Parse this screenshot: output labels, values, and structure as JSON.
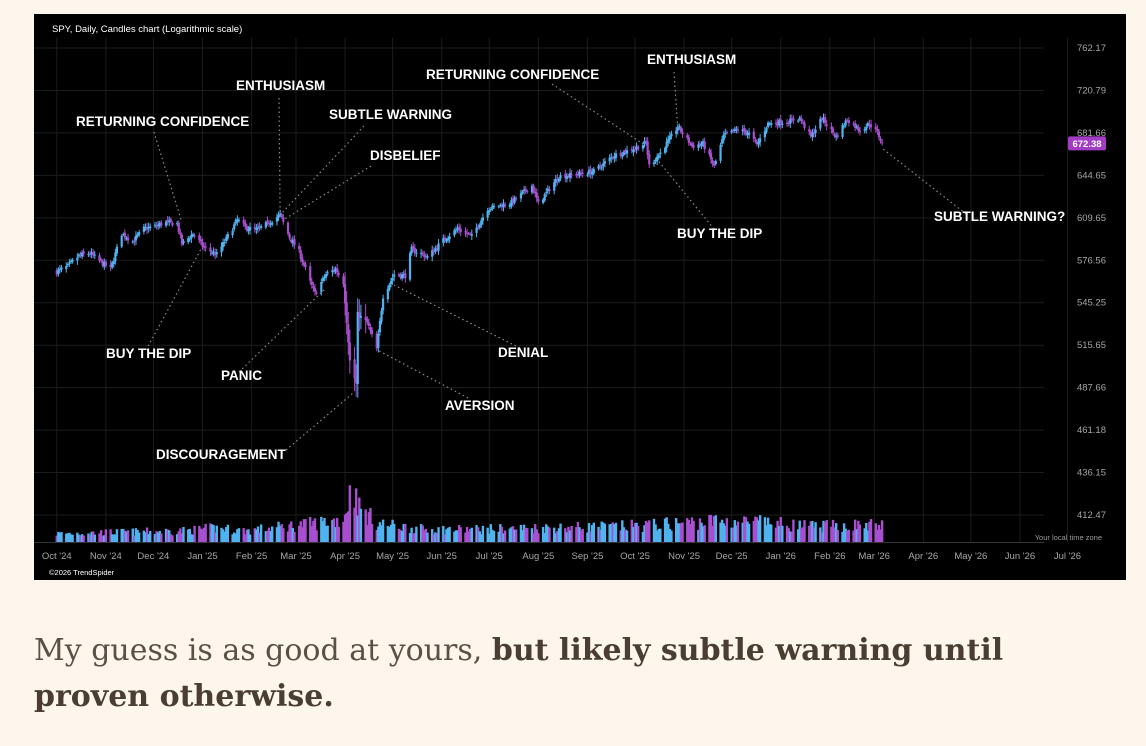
{
  "chart_data": {
    "type": "candlestick",
    "title": "SPY, Daily, Candles chart (Logarithmic scale)",
    "y_scale": "log",
    "ylim": [
      400,
      775
    ],
    "y_ticks": [
      "762.17",
      "720.79",
      "681.66",
      "644.65",
      "609.65",
      "576.56",
      "545.25",
      "515.65",
      "487.66",
      "461.18",
      "436.15",
      "412.47"
    ],
    "x_ticks": [
      "Oct '24",
      "Nov '24",
      "Dec '24",
      "Jan '25",
      "Feb '25",
      "Mar '25",
      "Apr '25",
      "May '25",
      "Jun '25",
      "Jul '25",
      "Aug '25",
      "Sep '25",
      "Oct '25",
      "Nov '25",
      "Dec '25",
      "Jan '26",
      "Feb '26",
      "Mar '26",
      "Apr '26",
      "May '26",
      "Jun '26",
      "Jul '26"
    ],
    "last_price": "672.38",
    "x_note": "Your local time zone",
    "footer": "©2026 TrendSpider",
    "colors": {
      "up": "#4fb3f0",
      "down": "#a84fd0",
      "last_price_bg": "#a23cc4",
      "annotation": "#ffffff",
      "grid": "#1c1c1c",
      "leader": "#8a8a8a"
    },
    "price_path": [
      {
        "date": "2024-10-01",
        "close": 568
      },
      {
        "date": "2024-10-08",
        "close": 572
      },
      {
        "date": "2024-10-15",
        "close": 580
      },
      {
        "date": "2024-10-22",
        "close": 582
      },
      {
        "date": "2024-10-29",
        "close": 575
      },
      {
        "date": "2024-11-04",
        "close": 570
      },
      {
        "date": "2024-11-11",
        "close": 597
      },
      {
        "date": "2024-11-18",
        "close": 591
      },
      {
        "date": "2024-11-25",
        "close": 601
      },
      {
        "date": "2024-12-02",
        "close": 603
      },
      {
        "date": "2024-12-09",
        "close": 606
      },
      {
        "date": "2024-12-16",
        "close": 605
      },
      {
        "date": "2024-12-19",
        "close": 589
      },
      {
        "date": "2024-12-26",
        "close": 597
      },
      {
        "date": "2025-01-02",
        "close": 586
      },
      {
        "date": "2025-01-10",
        "close": 581
      },
      {
        "date": "2025-01-16",
        "close": 593
      },
      {
        "date": "2025-01-23",
        "close": 608
      },
      {
        "date": "2025-01-28",
        "close": 602
      },
      {
        "date": "2025-02-04",
        "close": 600
      },
      {
        "date": "2025-02-11",
        "close": 605
      },
      {
        "date": "2025-02-19",
        "close": 612
      },
      {
        "date": "2025-02-25",
        "close": 594
      },
      {
        "date": "2025-03-03",
        "close": 583
      },
      {
        "date": "2025-03-10",
        "close": 560
      },
      {
        "date": "2025-03-13",
        "close": 552
      },
      {
        "date": "2025-03-20",
        "close": 566
      },
      {
        "date": "2025-03-26",
        "close": 570
      },
      {
        "date": "2025-03-31",
        "close": 560
      },
      {
        "date": "2025-04-04",
        "close": 505
      },
      {
        "date": "2025-04-08",
        "close": 490
      },
      {
        "date": "2025-04-09",
        "close": 537
      },
      {
        "date": "2025-04-15",
        "close": 531
      },
      {
        "date": "2025-04-21",
        "close": 513
      },
      {
        "date": "2025-04-25",
        "close": 550
      },
      {
        "date": "2025-05-02",
        "close": 566
      },
      {
        "date": "2025-05-09",
        "close": 565
      },
      {
        "date": "2025-05-13",
        "close": 585
      },
      {
        "date": "2025-05-23",
        "close": 579
      },
      {
        "date": "2025-06-02",
        "close": 592
      },
      {
        "date": "2025-06-11",
        "close": 601
      },
      {
        "date": "2025-06-20",
        "close": 595
      },
      {
        "date": "2025-06-30",
        "close": 617
      },
      {
        "date": "2025-07-15",
        "close": 622
      },
      {
        "date": "2025-07-28",
        "close": 636
      },
      {
        "date": "2025-08-01",
        "close": 621
      },
      {
        "date": "2025-08-14",
        "close": 644
      },
      {
        "date": "2025-08-22",
        "close": 645
      },
      {
        "date": "2025-09-05",
        "close": 648
      },
      {
        "date": "2025-09-18",
        "close": 662
      },
      {
        "date": "2025-10-01",
        "close": 668
      },
      {
        "date": "2025-10-08",
        "close": 673
      },
      {
        "date": "2025-10-10",
        "close": 653
      },
      {
        "date": "2025-10-17",
        "close": 664
      },
      {
        "date": "2025-10-28",
        "close": 687
      },
      {
        "date": "2025-11-06",
        "close": 670
      },
      {
        "date": "2025-11-13",
        "close": 672
      },
      {
        "date": "2025-11-20",
        "close": 652
      },
      {
        "date": "2025-11-26",
        "close": 679
      },
      {
        "date": "2025-12-05",
        "close": 685
      },
      {
        "date": "2025-12-12",
        "close": 681
      },
      {
        "date": "2025-12-17",
        "close": 671
      },
      {
        "date": "2025-12-24",
        "close": 690
      },
      {
        "date": "2026-01-06",
        "close": 692
      },
      {
        "date": "2026-01-13",
        "close": 695
      },
      {
        "date": "2026-01-20",
        "close": 678
      },
      {
        "date": "2026-01-27",
        "close": 695
      },
      {
        "date": "2026-02-05",
        "close": 678
      },
      {
        "date": "2026-02-12",
        "close": 694
      },
      {
        "date": "2026-02-20",
        "close": 684
      },
      {
        "date": "2026-02-26",
        "close": 690
      },
      {
        "date": "2026-03-03",
        "close": 682
      },
      {
        "date": "2026-03-06",
        "close": 672
      }
    ],
    "volume_profile": [
      {
        "date": "2024-10-01",
        "v": 0.6
      },
      {
        "date": "2024-12-20",
        "v": 0.8
      },
      {
        "date": "2025-01-10",
        "v": 1.0
      },
      {
        "date": "2025-01-28",
        "v": 0.8
      },
      {
        "date": "2025-03-10",
        "v": 1.3
      },
      {
        "date": "2025-03-31",
        "v": 1.6
      },
      {
        "date": "2025-04-04",
        "v": 3.3
      },
      {
        "date": "2025-04-08",
        "v": 3.6
      },
      {
        "date": "2025-04-10",
        "v": 2.4
      },
      {
        "date": "2025-04-22",
        "v": 1.3
      },
      {
        "date": "2025-05-20",
        "v": 0.9
      },
      {
        "date": "2025-06-20",
        "v": 0.9
      },
      {
        "date": "2025-08-01",
        "v": 1.0
      },
      {
        "date": "2025-09-19",
        "v": 1.1
      },
      {
        "date": "2025-10-10",
        "v": 1.2
      },
      {
        "date": "2025-11-20",
        "v": 1.5
      },
      {
        "date": "2025-12-19",
        "v": 1.4
      },
      {
        "date": "2026-01-20",
        "v": 1.1
      },
      {
        "date": "2026-02-20",
        "v": 1.2
      },
      {
        "date": "2026-03-06",
        "v": 1.2
      }
    ],
    "annotations": [
      {
        "text": "RETURNING CONFIDENCE",
        "date": "2024-12-19",
        "price": 606
      },
      {
        "text": "ENTHUSIASM",
        "date": "2025-02-19",
        "price": 612
      },
      {
        "text": "SUBTLE WARNING",
        "date": "2025-02-19",
        "price": 612
      },
      {
        "text": "DISBELIEF",
        "date": "2025-02-21",
        "price": 608
      },
      {
        "text": "BUY THE DIP",
        "date": "2024-12-31",
        "price": 585
      },
      {
        "text": "PANIC",
        "date": "2025-03-20",
        "price": 556
      },
      {
        "text": "DISCOURAGEMENT",
        "date": "2025-04-07",
        "price": 485
      },
      {
        "text": "AVERSION",
        "date": "2025-04-22",
        "price": 512
      },
      {
        "text": "DENIAL",
        "date": "2025-05-02",
        "price": 558
      },
      {
        "text": "RETURNING CONFIDENCE",
        "date": "2025-10-06",
        "price": 672
      },
      {
        "text": "ENTHUSIASM",
        "date": "2025-10-28",
        "price": 686
      },
      {
        "text": "BUY THE DIP",
        "date": "2025-10-14",
        "price": 660
      },
      {
        "text": "SUBTLE WARNING?",
        "date": "2026-03-06",
        "price": 668
      }
    ]
  },
  "caption": {
    "plain": "My guess is as good at yours, ",
    "bold": "but likely subtle warning until proven otherwise."
  }
}
